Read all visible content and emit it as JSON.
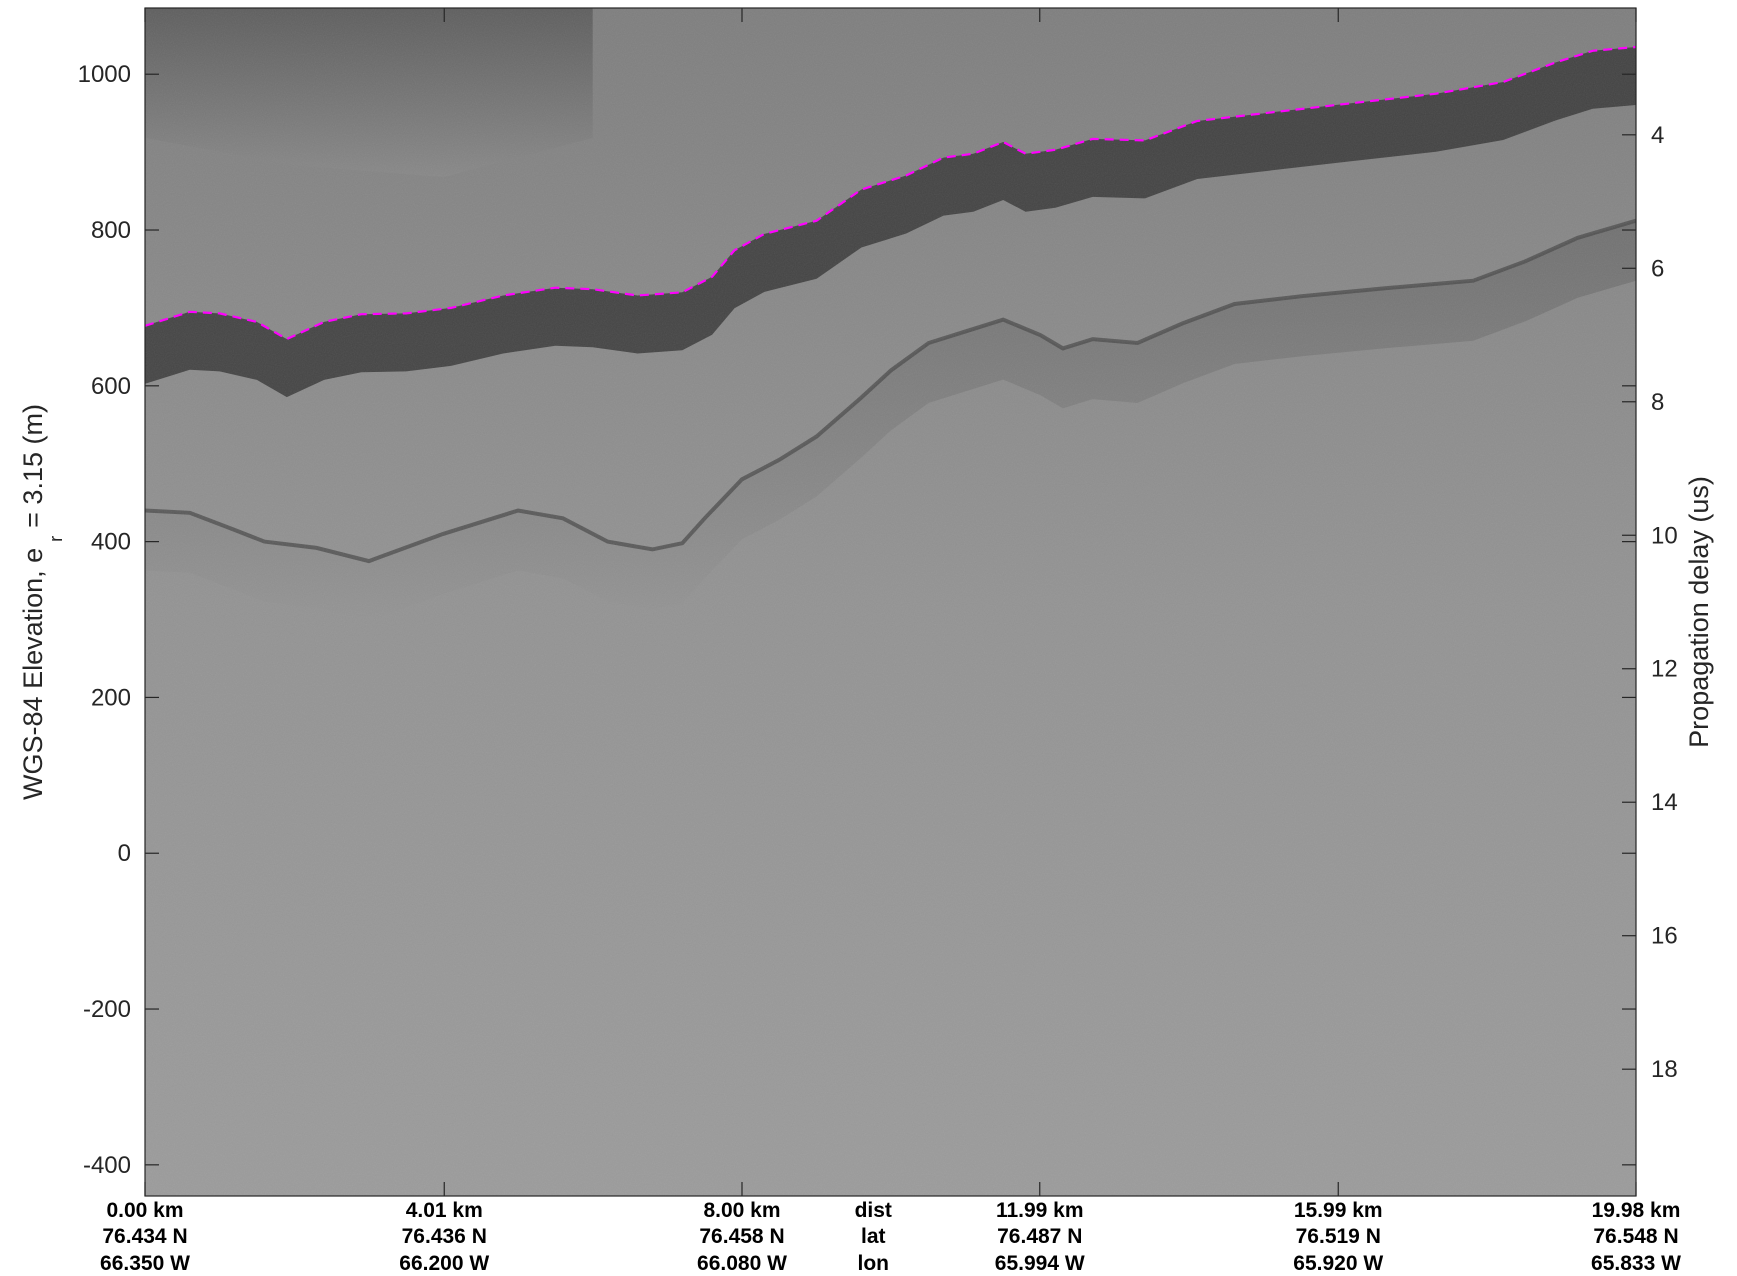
{
  "chart_data": {
    "type": "radargram",
    "ylabel_left": "WGS-84 Elevation, e",
    "ylabel_left_subscript": "r",
    "ylabel_left_suffix": "= 3.15 (m)",
    "ylabel_right": "Propagation delay (us)",
    "left_axis": {
      "ylim": [
        -440,
        1085
      ],
      "ticks": [
        1000,
        800,
        600,
        400,
        200,
        0,
        -200,
        -400
      ],
      "tick_labels": [
        "1000",
        "800",
        "600",
        "400",
        "200",
        "0",
        "-200",
        "-400"
      ]
    },
    "right_axis": {
      "ylim": [
        2.1,
        19.9
      ],
      "ticks": [
        4,
        6,
        8,
        10,
        12,
        14,
        16,
        18
      ],
      "tick_labels": [
        "4",
        "6",
        "8",
        "10",
        "12",
        "14",
        "16",
        "18"
      ]
    },
    "x_axis": {
      "xlim": [
        0,
        19.98
      ],
      "ticks": [
        0,
        4.01,
        8.0,
        11.99,
        15.99,
        19.98
      ],
      "row_labels": {
        "dist": "dist",
        "lat": "lat",
        "lon": "lon"
      },
      "dist_labels": [
        "0.00 km",
        "4.01 km",
        "8.00 km",
        "11.99 km",
        "15.99 km",
        "19.98 km"
      ],
      "lat_labels": [
        "76.434 N",
        "76.436 N",
        "76.458 N",
        "76.487 N",
        "76.519 N",
        "76.548 N"
      ],
      "lon_labels": [
        "66.350 W",
        "66.200 W",
        "66.080 W",
        "65.994 W",
        "65.920 W",
        "65.833 W"
      ],
      "row_label_x": 10.0
    },
    "surface_pick": {
      "color": "#ff00ff",
      "style": "dashed",
      "x": [
        0,
        0.6,
        1.0,
        1.5,
        1.9,
        2.4,
        2.9,
        3.5,
        4.1,
        4.8,
        5.5,
        6.0,
        6.6,
        7.2,
        7.6,
        7.9,
        8.3,
        9.0,
        9.6,
        10.2,
        10.7,
        11.1,
        11.5,
        11.8,
        12.2,
        12.7,
        13.4,
        14.1,
        15.0,
        16.1,
        17.3,
        18.2,
        18.9,
        19.4,
        19.98
      ],
      "y": [
        677,
        695,
        693,
        682,
        660,
        682,
        692,
        693,
        700,
        716,
        726,
        724,
        716,
        720,
        740,
        774,
        795,
        812,
        852,
        870,
        893,
        898,
        913,
        898,
        903,
        917,
        915,
        940,
        950,
        962,
        975,
        990,
        1015,
        1030,
        1035
      ]
    },
    "bed_reflector": {
      "x": [
        0,
        0.6,
        1.2,
        1.6,
        2.3,
        3.0,
        4.0,
        5.0,
        5.6,
        6.2,
        6.8,
        7.2,
        7.5,
        8.0,
        8.5,
        9.0,
        9.6,
        10.0,
        10.5,
        11.0,
        11.5,
        12.0,
        12.3,
        12.7,
        13.3,
        13.9,
        14.6,
        15.5,
        16.6,
        17.8,
        18.5,
        19.2,
        19.98
      ],
      "y": [
        440,
        437,
        415,
        400,
        392,
        375,
        410,
        440,
        430,
        400,
        390,
        398,
        430,
        480,
        505,
        535,
        585,
        620,
        655,
        670,
        685,
        665,
        648,
        660,
        655,
        680,
        705,
        715,
        725,
        735,
        760,
        790,
        812
      ]
    },
    "ice_top": {
      "x": [
        0,
        2.0,
        4.0,
        6.0
      ],
      "y": [
        1085,
        1050,
        1035,
        1085
      ]
    }
  }
}
